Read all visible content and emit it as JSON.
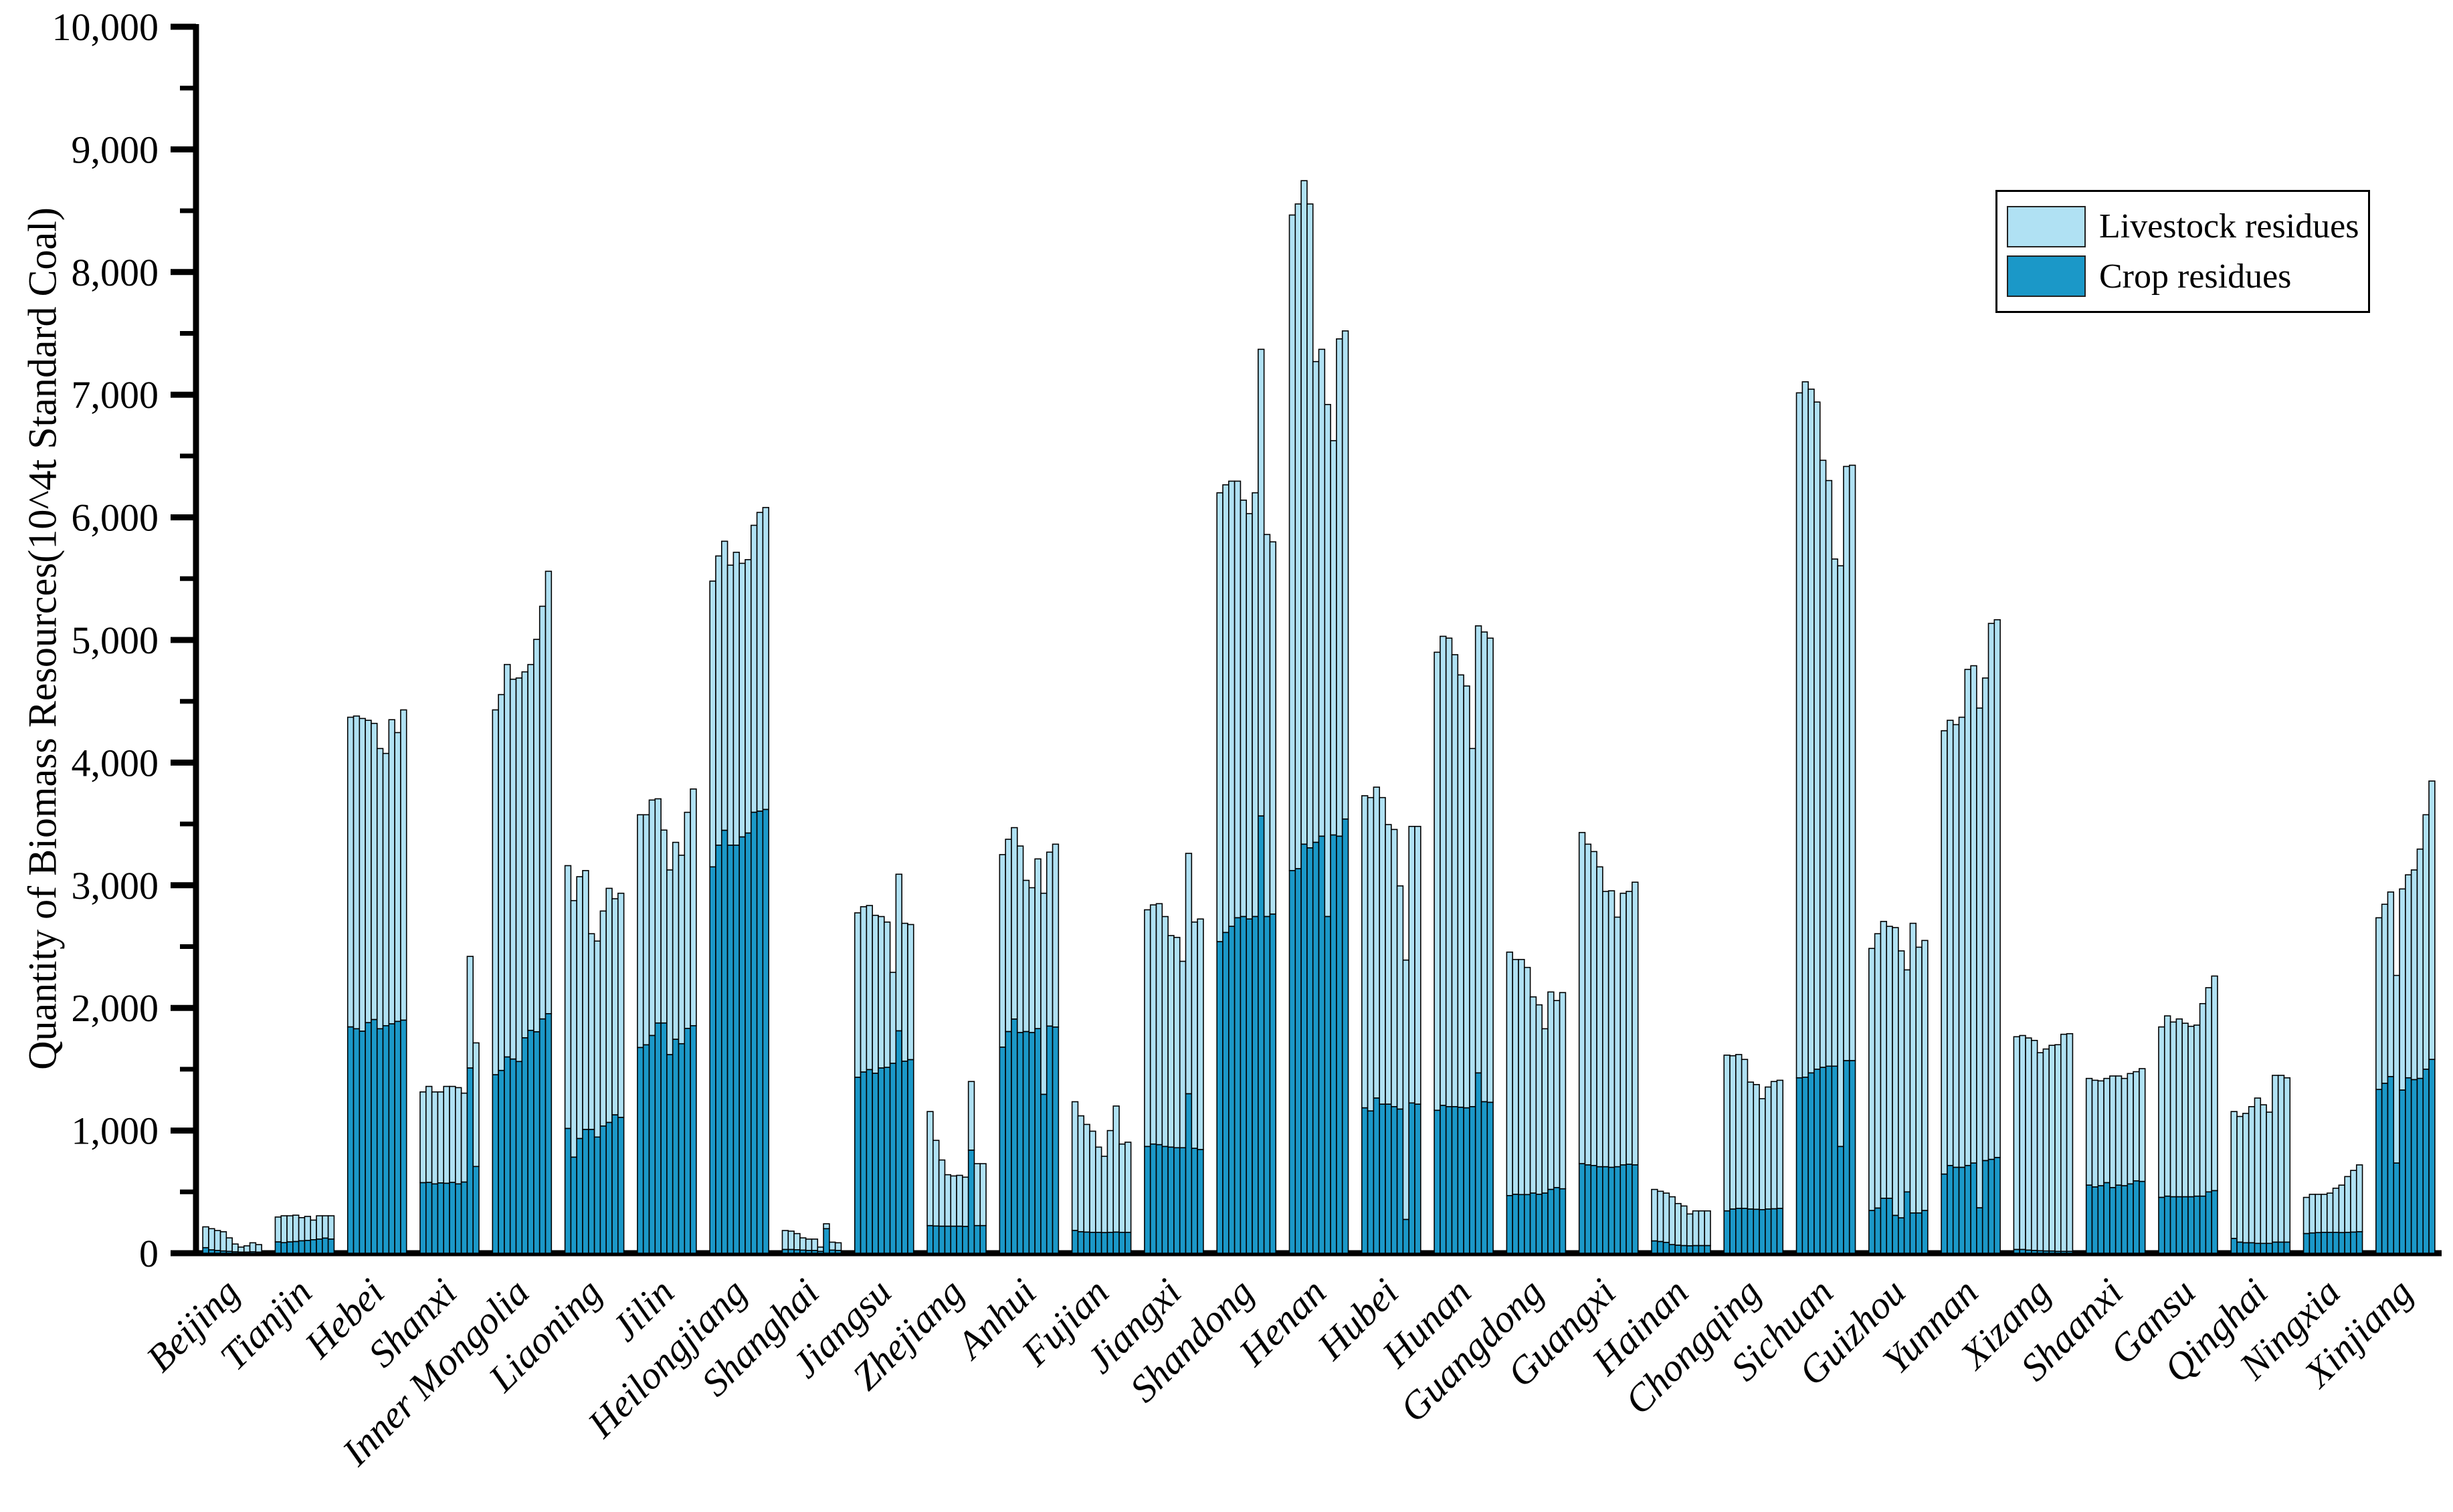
{
  "chart_data": {
    "type": "bar",
    "stacked": true,
    "grid": false,
    "title": "",
    "xlabel": "",
    "ylabel": "Quantity of Biomass Resources(10^4t Standard Coal)",
    "ylim": [
      0,
      10000
    ],
    "ytick_interval": 1000,
    "ytick_minor_interval": 500,
    "ytick_labels": [
      "0",
      "1,000",
      "2,000",
      "3,000",
      "4,000",
      "5,000",
      "6,000",
      "7,000",
      "8,000",
      "9,000",
      "10,000"
    ],
    "bars_per_category": 10,
    "legend_position": "top-right",
    "legend_entries": [
      "Livestock residues",
      "Crop residues"
    ],
    "categories": [
      "Beijing",
      "Tianjin",
      "Hebei",
      "Shanxi",
      "Inner Mongolia",
      "Liaoning",
      "Jilin",
      "Heilongjiang",
      "Shanghai",
      "Jiangsu",
      "Zhejiang",
      "Anhui",
      "Fujian",
      "Jiangxi",
      "Shandong",
      "Henan",
      "Hubei",
      "Hunan",
      "Guangdong",
      "Guangxi",
      "Hainan",
      "Chongqing",
      "Sichuan",
      "Guizhou",
      "Yunnan",
      "Xizang",
      "Shaanxi",
      "Gansu",
      "Qinghai",
      "Ningxia",
      "Xinjiang"
    ],
    "series": [
      {
        "name": "Crop residues",
        "color": "#1b98c8",
        "stack_order": 0,
        "values": [
          [
            45,
            27,
            22,
            18,
            15,
            11,
            9,
            9,
            11,
            9
          ],
          [
            92,
            86,
            92,
            95,
            101,
            104,
            110,
            115,
            123,
            115
          ],
          [
            1845,
            1830,
            1810,
            1880,
            1905,
            1830,
            1855,
            1870,
            1890,
            1900
          ],
          [
            575,
            577,
            565,
            573,
            570,
            577,
            565,
            580,
            1510,
            707
          ],
          [
            1455,
            1490,
            1600,
            1583,
            1563,
            1756,
            1817,
            1805,
            1910,
            1953
          ],
          [
            1017,
            783,
            935,
            1009,
            1009,
            947,
            1037,
            1066,
            1128,
            1107
          ],
          [
            1677,
            1699,
            1775,
            1877,
            1877,
            1619,
            1744,
            1708,
            1833,
            1855
          ],
          [
            3150,
            3327,
            3448,
            3327,
            3327,
            3394,
            3426,
            3595,
            3604,
            3618
          ],
          [
            30,
            30,
            28,
            25,
            22,
            22,
            15,
            200,
            25,
            22
          ],
          [
            1434,
            1477,
            1497,
            1467,
            1510,
            1515,
            1548,
            1813,
            1565,
            1578
          ],
          [
            225,
            222,
            220,
            220,
            220,
            220,
            218,
            840,
            225,
            225
          ],
          [
            1680,
            1807,
            1909,
            1799,
            1807,
            1799,
            1831,
            1295,
            1852,
            1844
          ],
          [
            185,
            175,
            172,
            170,
            170,
            168,
            170,
            172,
            170,
            170
          ],
          [
            870,
            890,
            885,
            870,
            865,
            860,
            860,
            1300,
            855,
            845
          ],
          [
            2540,
            2615,
            2665,
            2735,
            2745,
            2725,
            2745,
            3565,
            2745,
            2765
          ],
          [
            3120,
            3135,
            3335,
            3305,
            3350,
            3400,
            2745,
            3410,
            3400,
            3540
          ],
          [
            1185,
            1160,
            1265,
            1215,
            1215,
            1195,
            1175,
            275,
            1225,
            1215
          ],
          [
            1165,
            1205,
            1195,
            1195,
            1190,
            1185,
            1195,
            1470,
            1235,
            1230
          ],
          [
            470,
            480,
            478,
            478,
            490,
            480,
            490,
            520,
            535,
            525
          ],
          [
            730,
            720,
            715,
            705,
            705,
            700,
            705,
            720,
            725,
            720
          ],
          [
            100,
            95,
            88,
            70,
            65,
            62,
            60,
            62,
            62,
            62
          ],
          [
            345,
            360,
            365,
            365,
            360,
            358,
            355,
            360,
            362,
            365
          ],
          [
            1430,
            1435,
            1470,
            1500,
            1515,
            1525,
            1525,
            870,
            1570,
            1570
          ],
          [
            348,
            368,
            448,
            448,
            308,
            288,
            500,
            328,
            328,
            348
          ],
          [
            645,
            715,
            700,
            700,
            715,
            735,
            370,
            755,
            765,
            780
          ],
          [
            30,
            30,
            25,
            22,
            20,
            18,
            18,
            15,
            15,
            15
          ],
          [
            555,
            540,
            550,
            575,
            535,
            555,
            550,
            565,
            590,
            585
          ],
          [
            455,
            465,
            460,
            460,
            460,
            460,
            465,
            465,
            500,
            510
          ],
          [
            120,
            90,
            85,
            85,
            80,
            80,
            80,
            90,
            90,
            90
          ],
          [
            160,
            165,
            168,
            170,
            170,
            170,
            168,
            170,
            172,
            175
          ],
          [
            1335,
            1385,
            1440,
            735,
            1330,
            1430,
            1415,
            1425,
            1500,
            1580
          ]
        ]
      },
      {
        "name": "Livestock residues",
        "color": "#b0e1f3",
        "stack_order": 1,
        "values": [
          [
            170,
            173,
            163,
            157,
            110,
            64,
            41,
            51,
            74,
            61
          ],
          [
            203,
            219,
            213,
            215,
            189,
            196,
            160,
            190,
            182,
            190
          ],
          [
            2525,
            2550,
            2550,
            2465,
            2415,
            2285,
            2220,
            2480,
            2355,
            2530
          ],
          [
            740,
            783,
            750,
            742,
            790,
            783,
            785,
            725,
            910,
            1008
          ],
          [
            2975,
            3065,
            3200,
            3097,
            3127,
            2984,
            2983,
            3200,
            3365,
            3607
          ],
          [
            2143,
            2092,
            2135,
            2111,
            1596,
            1598,
            1753,
            1909,
            1762,
            1828
          ],
          [
            1898,
            1876,
            1920,
            1828,
            1573,
            1506,
            1606,
            1537,
            1762,
            1930
          ],
          [
            2330,
            2358,
            2357,
            2283,
            2388,
            2231,
            2229,
            2340,
            2436,
            2462
          ],
          [
            155,
            150,
            132,
            100,
            93,
            93,
            35,
            40,
            65,
            63
          ],
          [
            1341,
            1348,
            1338,
            1288,
            1235,
            1185,
            742,
            1277,
            1125,
            1102
          ],
          [
            930,
            698,
            540,
            420,
            410,
            415,
            402,
            560,
            505,
            505
          ],
          [
            1570,
            1568,
            1561,
            1521,
            1233,
            1181,
            1384,
            1640,
            1418,
            1491
          ],
          [
            1050,
            945,
            878,
            825,
            695,
            622,
            830,
            1028,
            720,
            735
          ],
          [
            1930,
            1950,
            1965,
            1875,
            1725,
            1715,
            1520,
            1960,
            1845,
            1880
          ],
          [
            3660,
            3650,
            3630,
            3560,
            3395,
            3305,
            3455,
            3805,
            3115,
            3035
          ],
          [
            5345,
            5420,
            5410,
            5250,
            3920,
            3970,
            4175,
            3215,
            4055,
            3980
          ],
          [
            2545,
            2555,
            2535,
            2500,
            2280,
            2260,
            1820,
            2115,
            2255,
            2265
          ],
          [
            3735,
            3825,
            3820,
            3685,
            3525,
            3440,
            2920,
            3645,
            3830,
            3785
          ],
          [
            1985,
            1915,
            1917,
            1852,
            1600,
            1545,
            1340,
            1610,
            1525,
            1600
          ],
          [
            2700,
            2615,
            2560,
            2445,
            2245,
            2255,
            2035,
            2215,
            2225,
            2305
          ],
          [
            420,
            410,
            402,
            390,
            340,
            323,
            260,
            283,
            283,
            283
          ],
          [
            1270,
            1250,
            1255,
            1215,
            1035,
            1017,
            905,
            995,
            1038,
            1045
          ],
          [
            5585,
            5670,
            5575,
            5440,
            4950,
            4775,
            4135,
            4735,
            4845,
            4855
          ],
          [
            2137,
            2237,
            2257,
            2217,
            2347,
            2177,
            1810,
            2362,
            2167,
            2202
          ],
          [
            3615,
            3630,
            3610,
            3670,
            4045,
            4055,
            4075,
            3935,
            4370,
            4385
          ],
          [
            1735,
            1745,
            1730,
            1713,
            1615,
            1647,
            1677,
            1685,
            1770,
            1775
          ],
          [
            870,
            870,
            855,
            850,
            910,
            890,
            875,
            900,
            890,
            920
          ],
          [
            1390,
            1470,
            1425,
            1450,
            1415,
            1390,
            1395,
            1570,
            1665,
            1750
          ],
          [
            1035,
            1025,
            1055,
            1110,
            1185,
            1130,
            1070,
            1360,
            1360,
            1340
          ],
          [
            295,
            315,
            312,
            310,
            320,
            360,
            387,
            455,
            503,
            545
          ],
          [
            1400,
            1460,
            1505,
            1530,
            1640,
            1655,
            1710,
            1870,
            2075,
            2270
          ]
        ]
      }
    ]
  }
}
